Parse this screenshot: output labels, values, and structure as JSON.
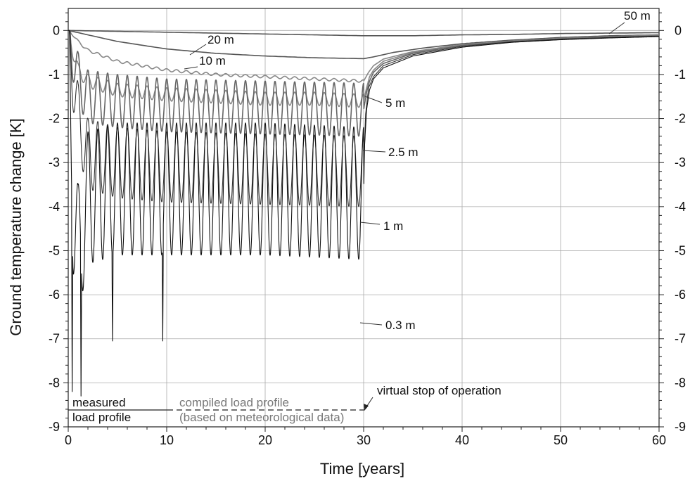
{
  "chart_data": {
    "type": "line",
    "title": "",
    "xlabel": "Time [years]",
    "ylabel": "Ground temperature change [K]",
    "xlim": [
      0,
      60
    ],
    "ylim": [
      -9,
      0.5
    ],
    "x_ticks": [
      0,
      10,
      20,
      30,
      40,
      50,
      60
    ],
    "y_ticks": [
      0,
      -1,
      -2,
      -3,
      -4,
      -5,
      -6,
      -7,
      -8,
      -9
    ],
    "grid": true,
    "series": [
      {
        "name": "50 m",
        "color": "#555555",
        "x": [
          0,
          5,
          10,
          15,
          20,
          25,
          30,
          35,
          40,
          45,
          50,
          55,
          60
        ],
        "y": [
          0,
          -0.02,
          -0.04,
          -0.06,
          -0.08,
          -0.1,
          -0.12,
          -0.12,
          -0.1,
          -0.09,
          -0.07,
          -0.06,
          -0.05
        ]
      },
      {
        "name": "20 m",
        "color": "#555555",
        "x": [
          0,
          2,
          5,
          10,
          15,
          20,
          25,
          30,
          31,
          33,
          36,
          40,
          45,
          50,
          55,
          60
        ],
        "y": [
          0,
          -0.1,
          -0.25,
          -0.42,
          -0.52,
          -0.58,
          -0.62,
          -0.64,
          -0.6,
          -0.5,
          -0.4,
          -0.3,
          -0.22,
          -0.16,
          -0.12,
          -0.1
        ]
      },
      {
        "name": "10 m",
        "color": "#888888",
        "x": [
          0,
          0.5,
          1,
          2,
          5,
          10,
          15,
          20,
          25,
          30,
          30.5,
          31,
          32,
          35,
          40,
          45,
          50,
          55,
          60
        ],
        "y": [
          0,
          -0.1,
          -0.25,
          -0.45,
          -0.7,
          -0.9,
          -1.0,
          -1.05,
          -1.1,
          -1.15,
          -0.95,
          -0.8,
          -0.65,
          -0.48,
          -0.32,
          -0.24,
          -0.18,
          -0.14,
          -0.11
        ],
        "annual_amplitude": 0.06
      },
      {
        "name": "5 m",
        "color": "#888888",
        "x": [
          0,
          0.5,
          1,
          2,
          5,
          10,
          15,
          20,
          25,
          30,
          30.3,
          30.6,
          31,
          32,
          35,
          40,
          45,
          50,
          55,
          60
        ],
        "y": [
          0,
          -0.5,
          -0.9,
          -1.15,
          -1.35,
          -1.45,
          -1.5,
          -1.55,
          -1.55,
          -1.6,
          -1.3,
          -1.05,
          -0.9,
          -0.7,
          -0.5,
          -0.33,
          -0.24,
          -0.18,
          -0.14,
          -0.11
        ],
        "annual_amplitude": 0.3
      },
      {
        "name": "2.5 m",
        "color": "#666666",
        "x": [
          0,
          1,
          2,
          5,
          10,
          20,
          30,
          30.3,
          30.6,
          31,
          32,
          35,
          40,
          45,
          50,
          55,
          60
        ],
        "y": [
          0,
          -1.1,
          -1.5,
          -1.6,
          -1.7,
          -1.75,
          -1.8,
          -1.4,
          -1.15,
          -0.95,
          -0.75,
          -0.52,
          -0.34,
          -0.25,
          -0.19,
          -0.15,
          -0.12
        ],
        "annual_amplitude": 1.2
      },
      {
        "name": "1 m",
        "color": "#333333",
        "x": [
          0,
          1,
          2,
          5,
          10,
          20,
          30,
          30.2,
          30.5,
          31,
          32,
          35,
          40,
          45,
          50,
          55,
          60
        ],
        "y": [
          0,
          -2.0,
          -2.8,
          -3.0,
          -3.1,
          -3.15,
          -3.2,
          -1.9,
          -1.3,
          -1.05,
          -0.8,
          -0.55,
          -0.36,
          -0.26,
          -0.2,
          -0.16,
          -0.13
        ],
        "annual_amplitude": 1.6
      },
      {
        "name": "0.3 m",
        "color": "#111111",
        "x": [
          0,
          0.5,
          1,
          2,
          5,
          10,
          20,
          30,
          30.1,
          30.3,
          30.6,
          31,
          32,
          35,
          40,
          45,
          50,
          55,
          60
        ],
        "y": [
          0,
          -4.0,
          -5.0,
          -3.8,
          -3.6,
          -3.6,
          -3.6,
          -3.7,
          -2.6,
          -1.8,
          -1.35,
          -1.1,
          -0.85,
          -0.58,
          -0.38,
          -0.27,
          -0.21,
          -0.17,
          -0.14
        ],
        "annual_amplitude": 3.0,
        "minima": [
          {
            "x": 0.4,
            "y": -8.2
          },
          {
            "x": 1.3,
            "y": -8.3
          },
          {
            "x": 4.5,
            "y": -7.05
          },
          {
            "x": 9.6,
            "y": -7.05
          }
        ]
      }
    ],
    "labels": {
      "s50": "50 m",
      "s20": "20 m",
      "s10": "10 m",
      "s5": "5 m",
      "s25": "2.5 m",
      "s1": "1 m",
      "s03": "0.3 m"
    },
    "annotations": {
      "measured_line1": "measured",
      "measured_line2": "load profile",
      "compiled_line1": "compiled load profile",
      "compiled_line2": "(based on meteorological data)",
      "virtual_stop": "virtual stop of operation"
    }
  }
}
